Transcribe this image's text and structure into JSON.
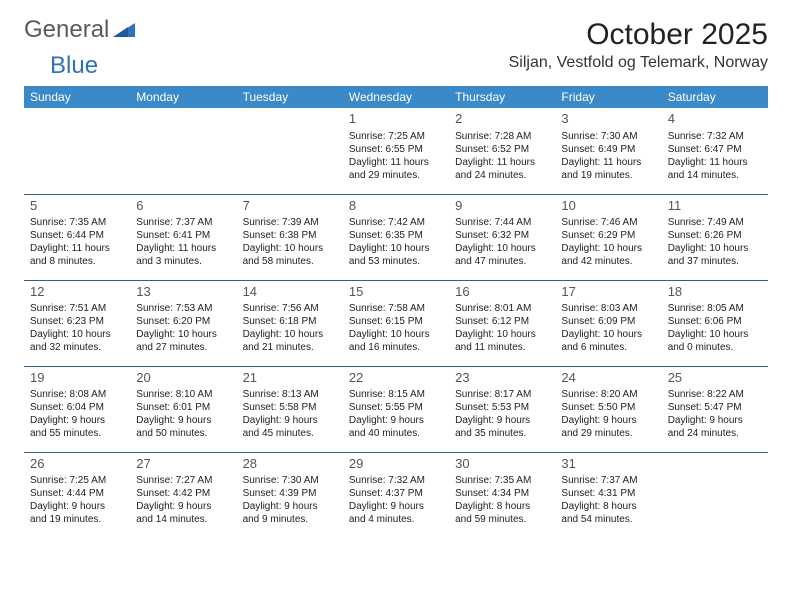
{
  "brand": {
    "part1": "General",
    "part2": "Blue"
  },
  "title": "October 2025",
  "location": "Siljan, Vestfold og Telemark, Norway",
  "columns": [
    "Sunday",
    "Monday",
    "Tuesday",
    "Wednesday",
    "Thursday",
    "Friday",
    "Saturday"
  ],
  "colors": {
    "header_bg": "#3a8ac9",
    "header_text": "#ffffff",
    "rule": "#2f5f8a",
    "brand_grey": "#5a5a5a",
    "brand_blue": "#2e72b8"
  },
  "weeks": [
    [
      {},
      {},
      {},
      {
        "day": "1",
        "sunrise": "Sunrise: 7:25 AM",
        "sunset": "Sunset: 6:55 PM",
        "daylight1": "Daylight: 11 hours",
        "daylight2": "and 29 minutes."
      },
      {
        "day": "2",
        "sunrise": "Sunrise: 7:28 AM",
        "sunset": "Sunset: 6:52 PM",
        "daylight1": "Daylight: 11 hours",
        "daylight2": "and 24 minutes."
      },
      {
        "day": "3",
        "sunrise": "Sunrise: 7:30 AM",
        "sunset": "Sunset: 6:49 PM",
        "daylight1": "Daylight: 11 hours",
        "daylight2": "and 19 minutes."
      },
      {
        "day": "4",
        "sunrise": "Sunrise: 7:32 AM",
        "sunset": "Sunset: 6:47 PM",
        "daylight1": "Daylight: 11 hours",
        "daylight2": "and 14 minutes."
      }
    ],
    [
      {
        "day": "5",
        "sunrise": "Sunrise: 7:35 AM",
        "sunset": "Sunset: 6:44 PM",
        "daylight1": "Daylight: 11 hours",
        "daylight2": "and 8 minutes."
      },
      {
        "day": "6",
        "sunrise": "Sunrise: 7:37 AM",
        "sunset": "Sunset: 6:41 PM",
        "daylight1": "Daylight: 11 hours",
        "daylight2": "and 3 minutes."
      },
      {
        "day": "7",
        "sunrise": "Sunrise: 7:39 AM",
        "sunset": "Sunset: 6:38 PM",
        "daylight1": "Daylight: 10 hours",
        "daylight2": "and 58 minutes."
      },
      {
        "day": "8",
        "sunrise": "Sunrise: 7:42 AM",
        "sunset": "Sunset: 6:35 PM",
        "daylight1": "Daylight: 10 hours",
        "daylight2": "and 53 minutes."
      },
      {
        "day": "9",
        "sunrise": "Sunrise: 7:44 AM",
        "sunset": "Sunset: 6:32 PM",
        "daylight1": "Daylight: 10 hours",
        "daylight2": "and 47 minutes."
      },
      {
        "day": "10",
        "sunrise": "Sunrise: 7:46 AM",
        "sunset": "Sunset: 6:29 PM",
        "daylight1": "Daylight: 10 hours",
        "daylight2": "and 42 minutes."
      },
      {
        "day": "11",
        "sunrise": "Sunrise: 7:49 AM",
        "sunset": "Sunset: 6:26 PM",
        "daylight1": "Daylight: 10 hours",
        "daylight2": "and 37 minutes."
      }
    ],
    [
      {
        "day": "12",
        "sunrise": "Sunrise: 7:51 AM",
        "sunset": "Sunset: 6:23 PM",
        "daylight1": "Daylight: 10 hours",
        "daylight2": "and 32 minutes."
      },
      {
        "day": "13",
        "sunrise": "Sunrise: 7:53 AM",
        "sunset": "Sunset: 6:20 PM",
        "daylight1": "Daylight: 10 hours",
        "daylight2": "and 27 minutes."
      },
      {
        "day": "14",
        "sunrise": "Sunrise: 7:56 AM",
        "sunset": "Sunset: 6:18 PM",
        "daylight1": "Daylight: 10 hours",
        "daylight2": "and 21 minutes."
      },
      {
        "day": "15",
        "sunrise": "Sunrise: 7:58 AM",
        "sunset": "Sunset: 6:15 PM",
        "daylight1": "Daylight: 10 hours",
        "daylight2": "and 16 minutes."
      },
      {
        "day": "16",
        "sunrise": "Sunrise: 8:01 AM",
        "sunset": "Sunset: 6:12 PM",
        "daylight1": "Daylight: 10 hours",
        "daylight2": "and 11 minutes."
      },
      {
        "day": "17",
        "sunrise": "Sunrise: 8:03 AM",
        "sunset": "Sunset: 6:09 PM",
        "daylight1": "Daylight: 10 hours",
        "daylight2": "and 6 minutes."
      },
      {
        "day": "18",
        "sunrise": "Sunrise: 8:05 AM",
        "sunset": "Sunset: 6:06 PM",
        "daylight1": "Daylight: 10 hours",
        "daylight2": "and 0 minutes."
      }
    ],
    [
      {
        "day": "19",
        "sunrise": "Sunrise: 8:08 AM",
        "sunset": "Sunset: 6:04 PM",
        "daylight1": "Daylight: 9 hours",
        "daylight2": "and 55 minutes."
      },
      {
        "day": "20",
        "sunrise": "Sunrise: 8:10 AM",
        "sunset": "Sunset: 6:01 PM",
        "daylight1": "Daylight: 9 hours",
        "daylight2": "and 50 minutes."
      },
      {
        "day": "21",
        "sunrise": "Sunrise: 8:13 AM",
        "sunset": "Sunset: 5:58 PM",
        "daylight1": "Daylight: 9 hours",
        "daylight2": "and 45 minutes."
      },
      {
        "day": "22",
        "sunrise": "Sunrise: 8:15 AM",
        "sunset": "Sunset: 5:55 PM",
        "daylight1": "Daylight: 9 hours",
        "daylight2": "and 40 minutes."
      },
      {
        "day": "23",
        "sunrise": "Sunrise: 8:17 AM",
        "sunset": "Sunset: 5:53 PM",
        "daylight1": "Daylight: 9 hours",
        "daylight2": "and 35 minutes."
      },
      {
        "day": "24",
        "sunrise": "Sunrise: 8:20 AM",
        "sunset": "Sunset: 5:50 PM",
        "daylight1": "Daylight: 9 hours",
        "daylight2": "and 29 minutes."
      },
      {
        "day": "25",
        "sunrise": "Sunrise: 8:22 AM",
        "sunset": "Sunset: 5:47 PM",
        "daylight1": "Daylight: 9 hours",
        "daylight2": "and 24 minutes."
      }
    ],
    [
      {
        "day": "26",
        "sunrise": "Sunrise: 7:25 AM",
        "sunset": "Sunset: 4:44 PM",
        "daylight1": "Daylight: 9 hours",
        "daylight2": "and 19 minutes."
      },
      {
        "day": "27",
        "sunrise": "Sunrise: 7:27 AM",
        "sunset": "Sunset: 4:42 PM",
        "daylight1": "Daylight: 9 hours",
        "daylight2": "and 14 minutes."
      },
      {
        "day": "28",
        "sunrise": "Sunrise: 7:30 AM",
        "sunset": "Sunset: 4:39 PM",
        "daylight1": "Daylight: 9 hours",
        "daylight2": "and 9 minutes."
      },
      {
        "day": "29",
        "sunrise": "Sunrise: 7:32 AM",
        "sunset": "Sunset: 4:37 PM",
        "daylight1": "Daylight: 9 hours",
        "daylight2": "and 4 minutes."
      },
      {
        "day": "30",
        "sunrise": "Sunrise: 7:35 AM",
        "sunset": "Sunset: 4:34 PM",
        "daylight1": "Daylight: 8 hours",
        "daylight2": "and 59 minutes."
      },
      {
        "day": "31",
        "sunrise": "Sunrise: 7:37 AM",
        "sunset": "Sunset: 4:31 PM",
        "daylight1": "Daylight: 8 hours",
        "daylight2": "and 54 minutes."
      },
      {}
    ]
  ]
}
